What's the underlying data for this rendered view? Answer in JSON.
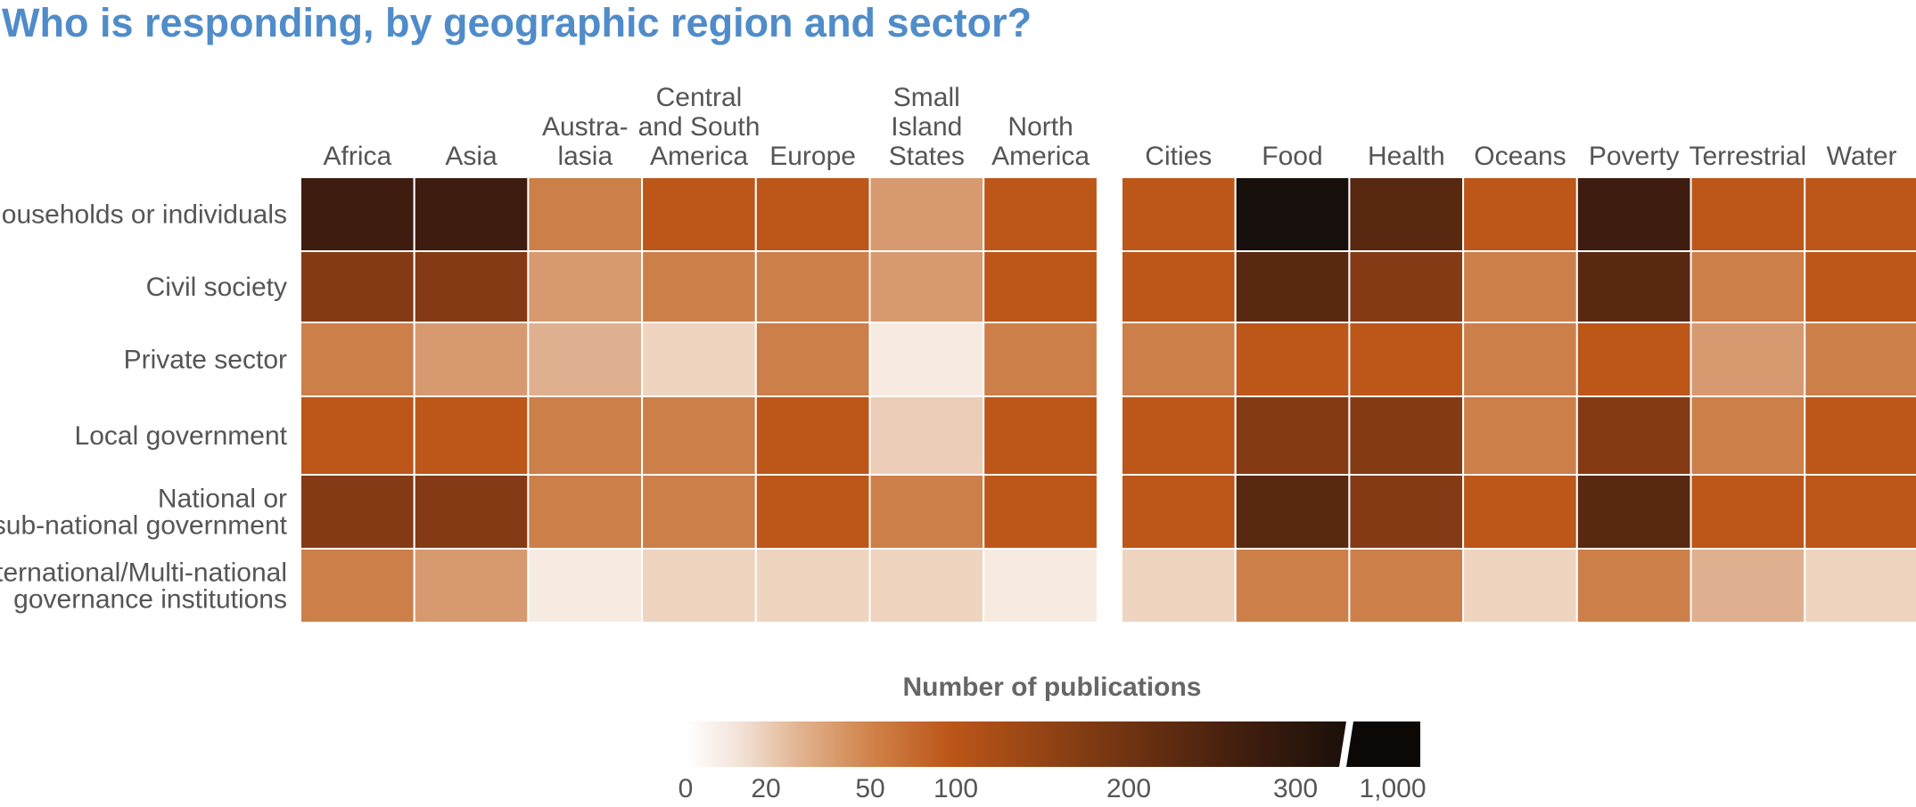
{
  "title": "Who is responding, by geographic region and sector?",
  "chart_data": {
    "type": "heatmap",
    "rows": [
      "Households or individuals",
      "Civil society",
      "Private sector",
      "Local government",
      "National or sub-national government",
      "International/Multi-national governance institutions"
    ],
    "row_label_lines": [
      [
        "Households or individuals"
      ],
      [
        "Civil society"
      ],
      [
        "Private sector"
      ],
      [
        "Local government"
      ],
      [
        "National or",
        "sub-national government"
      ],
      [
        "International/Multi-national",
        "governance institutions"
      ]
    ],
    "panels": [
      {
        "name": "regions",
        "columns": [
          "Africa",
          "Asia",
          "Australasia",
          "Central and South America",
          "Europe",
          "Small Island States",
          "North America"
        ],
        "column_label_lines": [
          [
            "Africa"
          ],
          [
            "Asia"
          ],
          [
            "Austra-",
            "lasia"
          ],
          [
            "Central",
            "and South",
            "America"
          ],
          [
            "Europe"
          ],
          [
            "Small",
            "Island",
            "States"
          ],
          [
            "North",
            "America"
          ]
        ],
        "values": [
          [
            300,
            300,
            70,
            110,
            110,
            45,
            110
          ],
          [
            170,
            170,
            45,
            70,
            70,
            45,
            110
          ],
          [
            70,
            45,
            35,
            15,
            70,
            5,
            70
          ],
          [
            110,
            110,
            70,
            70,
            110,
            20,
            110
          ],
          [
            170,
            170,
            70,
            70,
            110,
            70,
            110
          ],
          [
            70,
            45,
            5,
            15,
            15,
            15,
            5
          ]
        ]
      },
      {
        "name": "sectors",
        "columns": [
          "Cities",
          "Food",
          "Health",
          "Oceans",
          "Poverty",
          "Terrestrial",
          "Water"
        ],
        "column_label_lines": [
          [
            "Cities"
          ],
          [
            "Food"
          ],
          [
            "Health"
          ],
          [
            "Oceans"
          ],
          [
            "Poverty"
          ],
          [
            "Terrestrial"
          ],
          [
            "Water"
          ]
        ],
        "values": [
          [
            110,
            1000,
            230,
            110,
            300,
            110,
            110
          ],
          [
            110,
            230,
            170,
            70,
            230,
            70,
            110
          ],
          [
            70,
            110,
            110,
            70,
            110,
            45,
            70
          ],
          [
            110,
            170,
            170,
            70,
            170,
            70,
            110
          ],
          [
            110,
            230,
            170,
            110,
            230,
            110,
            110
          ],
          [
            15,
            70,
            70,
            15,
            70,
            35,
            15
          ]
        ]
      }
    ],
    "colorbar": {
      "title": "Number of publications",
      "ticks": [
        "0",
        "20",
        "50",
        "100",
        "200",
        "300",
        "1,000"
      ],
      "tick_values": [
        0,
        20,
        50,
        100,
        200,
        300,
        1000
      ]
    }
  }
}
